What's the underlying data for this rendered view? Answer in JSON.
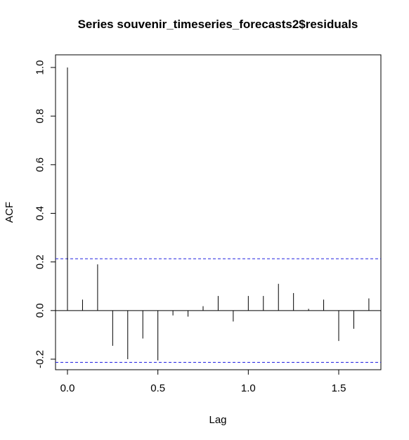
{
  "chart_data": {
    "type": "bar",
    "title": "Series  souvenir_timeseries_forecasts2$residuals",
    "xlabel": "Lag",
    "ylabel": "ACF",
    "xlim": [
      -0.05,
      1.75
    ],
    "ylim": [
      -0.27,
      1.0
    ],
    "x_ticks": [
      {
        "value": 0.0,
        "label": "0.0"
      },
      {
        "value": 0.5,
        "label": "0.5"
      },
      {
        "value": 1.0,
        "label": "1.0"
      },
      {
        "value": 1.5,
        "label": "1.5"
      }
    ],
    "y_ticks": [
      {
        "value": -0.2,
        "label": "-0.2"
      },
      {
        "value": 0.0,
        "label": "0.0"
      },
      {
        "value": 0.2,
        "label": "0.2"
      },
      {
        "value": 0.4,
        "label": "0.4"
      },
      {
        "value": 0.6,
        "label": "0.6"
      },
      {
        "value": 0.8,
        "label": "0.8"
      },
      {
        "value": 1.0,
        "label": "1.0"
      }
    ],
    "x": [
      0.0,
      0.0833,
      0.1667,
      0.25,
      0.3333,
      0.4167,
      0.5,
      0.5833,
      0.6667,
      0.75,
      0.8333,
      0.9167,
      1.0,
      1.0833,
      1.1667,
      1.25,
      1.3333,
      1.4167,
      1.5,
      1.5833,
      1.6667
    ],
    "values": [
      1.0,
      0.045,
      0.19,
      -0.145,
      -0.2,
      -0.115,
      -0.205,
      -0.02,
      -0.025,
      0.018,
      0.06,
      -0.045,
      0.06,
      0.06,
      0.11,
      0.072,
      0.007,
      0.045,
      -0.125,
      -0.075,
      0.05
    ],
    "confidence_bound": 0.213,
    "zero_line": true,
    "grid": false,
    "colors": {
      "bars": "#000000",
      "confidence_lines": "#2020e0",
      "frame": "#000000"
    }
  }
}
